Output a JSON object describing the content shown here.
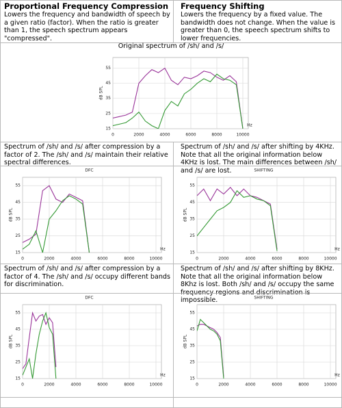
{
  "columns": [
    {
      "heading": "Proportional Frequency Compression",
      "text": "Lowers the frequency and bandwidth of speech by a given ratio (factor). When the ratio is greater than 1, the speech spectrum appears \"compressed\"."
    },
    {
      "heading": "Frequency Shifting",
      "text": "Lowers the frequency by a fixed value. The bandwidth does not change. When the value is greater than 0, the speech spectrum shifts to lower frequencies."
    }
  ],
  "captions": [
    "Spectrum of /sh/ and /s/ after compression by a factor of 2. The /sh/ and /s/ maintain their relative spectral differences.",
    "Spectrum of /sh/ and /s/ after shifting by 4KHz. Note that all the original information below 4KHz is lost. The main differences between /sh/ and /s/ are lost.",
    "Spectrum of /sh/ and /s/ after compression by a factor of 4. The /sh/ and /s/ occupy different bands for discrimination.",
    "Spectrum of /sh/ and /s/ after shifting by 8KHz. Note that all the original information below 8Khz is lost. Both /sh/ and /s/ occupy the same frequency regions and discrimination is impossible."
  ],
  "chart_data": [
    {
      "type": "line",
      "title": "Original spectrum of /sh/ and /s/",
      "y_label": "dB SPL",
      "x_unit": "Hz",
      "x": [
        0,
        500,
        1000,
        1500,
        2000,
        2500,
        3000,
        3500,
        4000,
        4500,
        5000,
        5500,
        6000,
        6500,
        7000,
        7500,
        8000,
        8500,
        9000,
        9500,
        10000
      ],
      "series": [
        {
          "color": "#993399",
          "values": [
            22,
            23,
            24,
            26,
            45,
            50,
            54,
            52,
            55,
            47,
            44,
            49,
            48,
            50,
            53,
            52,
            49,
            47,
            50,
            46,
            15
          ]
        },
        {
          "color": "#339933",
          "values": [
            17,
            18,
            19,
            22,
            26,
            20,
            17,
            15,
            27,
            33,
            30,
            38,
            41,
            45,
            48,
            46,
            51,
            48,
            47,
            44,
            15
          ]
        }
      ],
      "xlim": [
        0,
        10000
      ],
      "ylim": [
        15,
        62
      ],
      "xticks": [
        0,
        2000,
        4000,
        6000,
        8000,
        10000
      ],
      "yticks": [
        15,
        25,
        35,
        45,
        55
      ],
      "grid": true
    },
    {
      "type": "line",
      "title": "DFC",
      "y_label": "dB SPL",
      "x_unit": "Hz",
      "x": [
        0,
        500,
        1000,
        1500,
        2000,
        2500,
        3000,
        3500,
        4000,
        4500,
        5000
      ],
      "series": [
        {
          "color": "#993399",
          "values": [
            21,
            23,
            26,
            52,
            55,
            47,
            45,
            50,
            48,
            46,
            15
          ]
        },
        {
          "color": "#339933",
          "values": [
            17,
            20,
            28,
            15,
            35,
            40,
            46,
            49,
            47,
            44,
            15
          ]
        }
      ],
      "xlim": [
        0,
        10000
      ],
      "ylim": [
        15,
        60
      ],
      "xticks": [
        0,
        2000,
        4000,
        6000,
        8000,
        10000
      ],
      "yticks": [
        15,
        25,
        35,
        45,
        55
      ],
      "grid": true
    },
    {
      "type": "line",
      "title": "SHIFTING",
      "y_label": "dB SPL",
      "x_unit": "Hz",
      "x": [
        0,
        500,
        1000,
        1500,
        2000,
        2500,
        3000,
        3500,
        4000,
        4500,
        5000,
        5500,
        6000
      ],
      "series": [
        {
          "color": "#993399",
          "values": [
            49,
            53,
            46,
            53,
            50,
            54,
            49,
            53,
            49,
            48,
            46,
            44,
            17
          ]
        },
        {
          "color": "#339933",
          "values": [
            25,
            30,
            35,
            40,
            42,
            45,
            52,
            48,
            49,
            47,
            46,
            43,
            16
          ]
        }
      ],
      "xlim": [
        0,
        10000
      ],
      "ylim": [
        15,
        60
      ],
      "xticks": [
        0,
        2000,
        4000,
        6000,
        8000,
        10000
      ],
      "yticks": [
        15,
        25,
        35,
        45,
        55
      ],
      "grid": true
    },
    {
      "type": "line",
      "title": "DFC",
      "y_label": "dB SPL",
      "x_unit": "Hz",
      "x": [
        0,
        250,
        500,
        750,
        1000,
        1250,
        1500,
        1750,
        2000,
        2250,
        2500
      ],
      "series": [
        {
          "color": "#993399",
          "values": [
            21,
            24,
            40,
            55,
            50,
            53,
            54,
            48,
            52,
            49,
            22
          ]
        },
        {
          "color": "#339933",
          "values": [
            17,
            22,
            27,
            15,
            30,
            42,
            50,
            55,
            46,
            42,
            15
          ]
        }
      ],
      "xlim": [
        0,
        10000
      ],
      "ylim": [
        15,
        60
      ],
      "xticks": [
        0,
        2000,
        4000,
        6000,
        8000,
        10000
      ],
      "yticks": [
        15,
        25,
        35,
        45,
        55
      ],
      "grid": true
    },
    {
      "type": "line",
      "title": "SHIFTING",
      "y_label": "dB SPL",
      "x_unit": "Hz",
      "x": [
        0,
        250,
        500,
        750,
        1000,
        1250,
        1500,
        1750,
        2000
      ],
      "series": [
        {
          "color": "#993399",
          "values": [
            47,
            48,
            48,
            47,
            46,
            45,
            43,
            40,
            16
          ]
        },
        {
          "color": "#339933",
          "values": [
            44,
            51,
            49,
            47,
            45,
            44,
            42,
            38,
            15
          ]
        }
      ],
      "xlim": [
        0,
        10000
      ],
      "ylim": [
        15,
        60
      ],
      "xticks": [
        0,
        2000,
        4000,
        6000,
        8000,
        10000
      ],
      "yticks": [
        15,
        25,
        35,
        45,
        55
      ],
      "grid": true
    }
  ]
}
